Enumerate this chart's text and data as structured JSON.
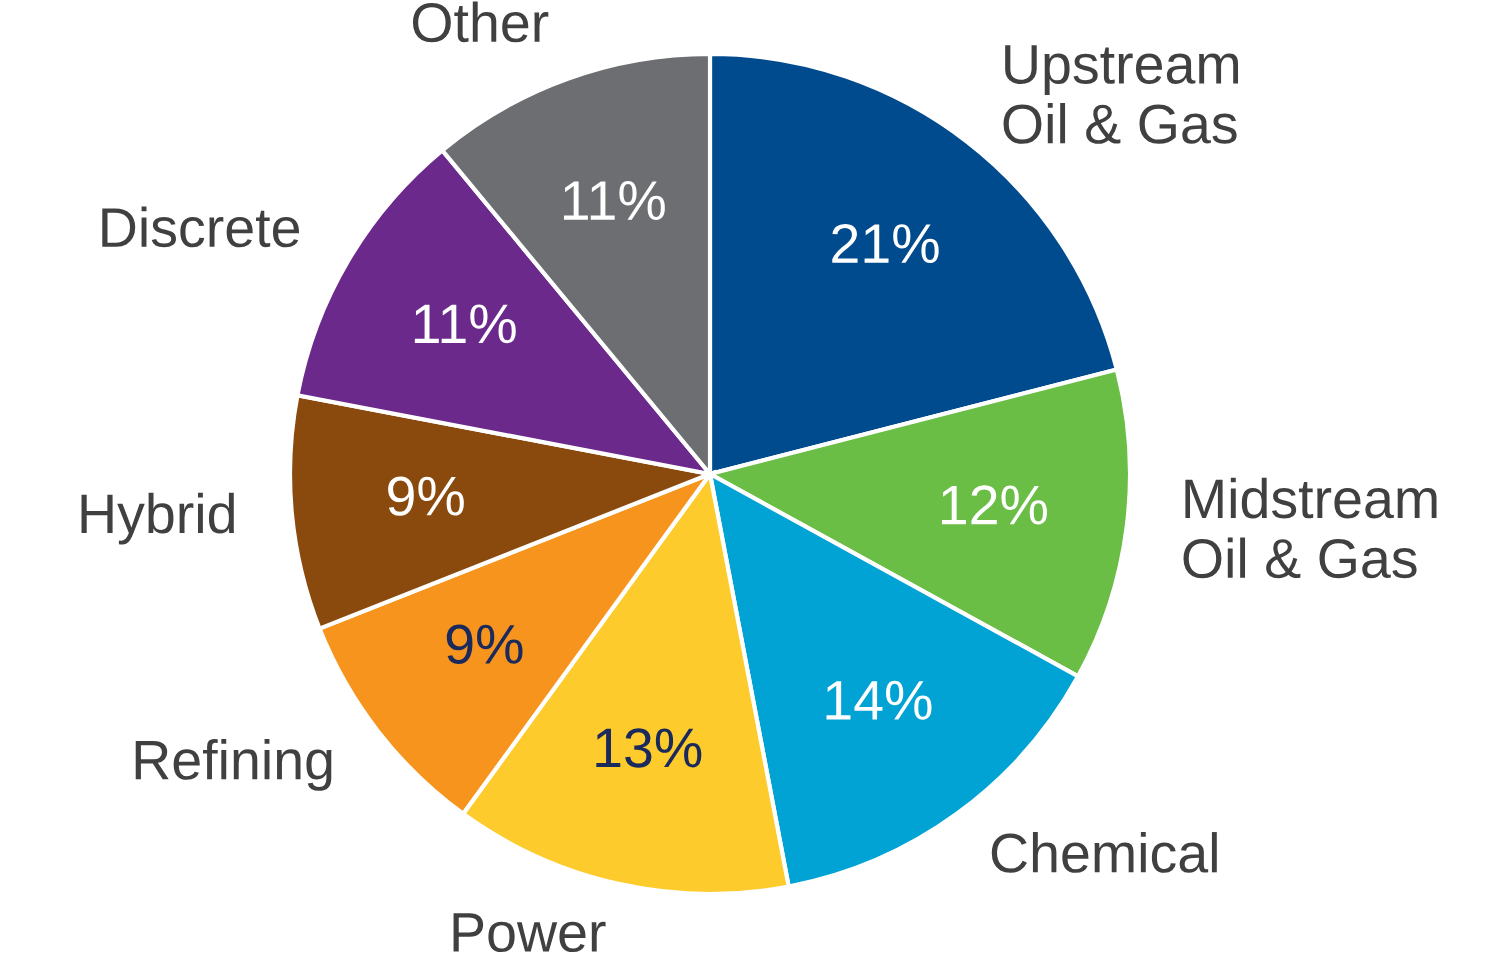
{
  "chart_data": {
    "type": "pie",
    "categories": [
      "Upstream\nOil & Gas",
      "Midstream\nOil & Gas",
      "Chemical",
      "Power",
      "Refining",
      "Hybrid",
      "Discrete",
      "Other"
    ],
    "values": [
      21,
      12,
      14,
      13,
      9,
      9,
      11,
      11
    ],
    "colors": [
      "#004b8d",
      "#6abd45",
      "#00a3d3",
      "#fdcb2b",
      "#f7941d",
      "#8b4a0d",
      "#6b2a8b",
      "#6d6e71"
    ],
    "value_labels": [
      "21%",
      "12%",
      "14%",
      "13%",
      "9%",
      "9%",
      "11%",
      "11%"
    ],
    "legend": false
  }
}
